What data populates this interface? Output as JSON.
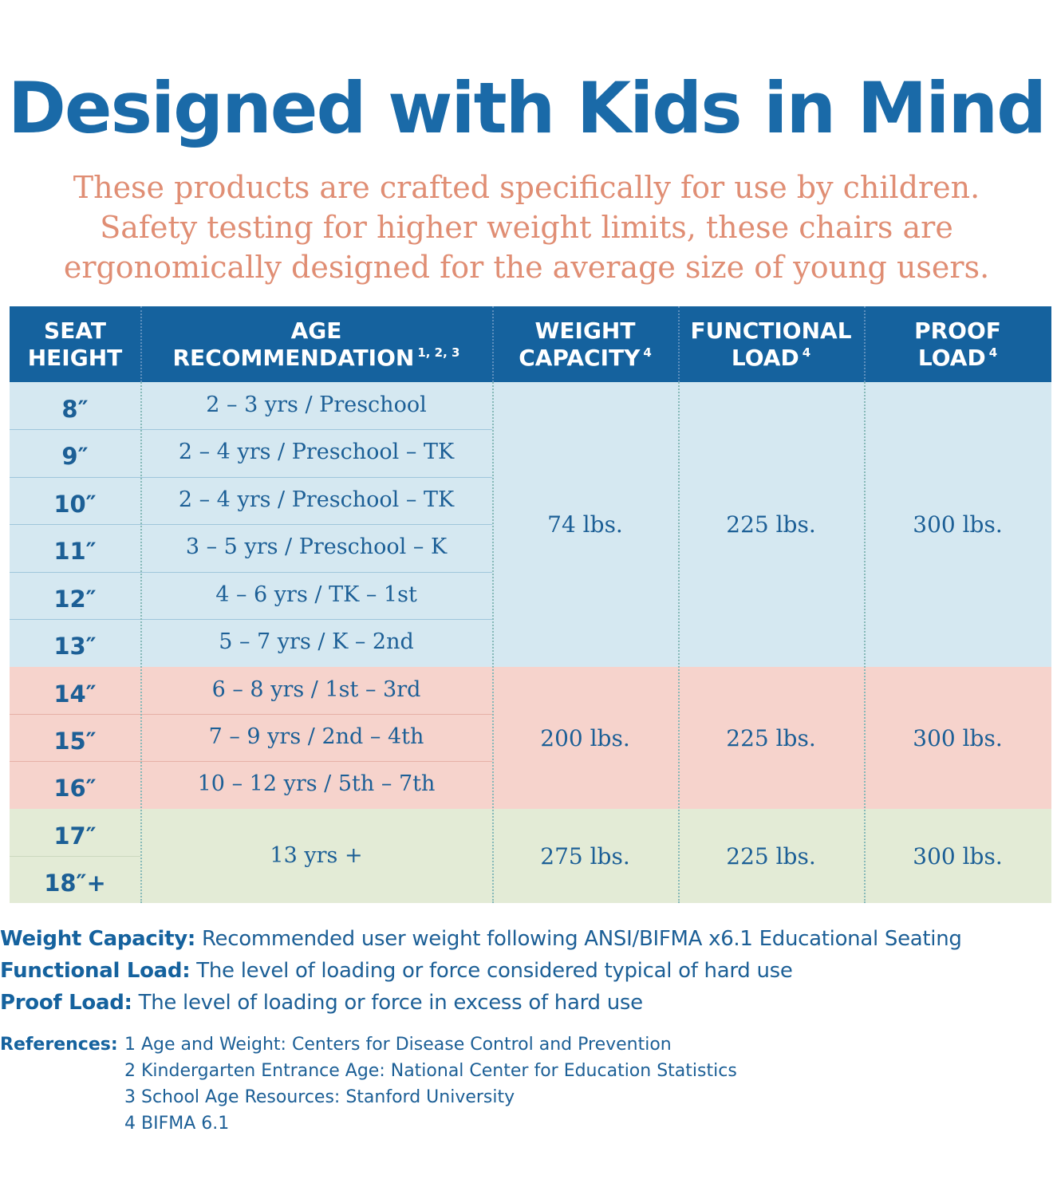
{
  "title": "Designed with Kids in Mind",
  "subtitle_lines": [
    "These products are crafted specifically for use by children.",
    "Safety testing for higher weight limits, these chairs are",
    "ergonomically designed for the average size of young users."
  ],
  "colors": {
    "title_blue": "#1a6aa8",
    "subtitle_salmon": "#e08e74",
    "header_blue": "#15629e",
    "band_blue": "#d5e8f1",
    "band_pink": "#f6d3cc",
    "band_green": "#e3ebd6"
  },
  "table": {
    "headers": {
      "seat": [
        "SEAT",
        "HEIGHT"
      ],
      "age": [
        "AGE",
        "RECOMMENDATION"
      ],
      "age_sup": "1, 2, 3",
      "weight": [
        "WEIGHT",
        "CAPACITY"
      ],
      "weight_sup": "4",
      "functional": [
        "FUNCTIONAL",
        "LOAD"
      ],
      "functional_sup": "4",
      "proof": [
        "PROOF",
        "LOAD"
      ],
      "proof_sup": "4"
    },
    "rows": [
      {
        "seat": "8″",
        "age": "2 – 3 yrs / Preschool"
      },
      {
        "seat": "9″",
        "age": "2 – 4 yrs / Preschool  –  TK"
      },
      {
        "seat": "10″",
        "age": "2 – 4 yrs / Preschool  –  TK"
      },
      {
        "seat": "11″",
        "age": "3 – 5 yrs / Preschool  –  K"
      },
      {
        "seat": "12″",
        "age": "4 – 6 yrs / TK  –  1st"
      },
      {
        "seat": "13″",
        "age": "5 – 7 yrs / K  –  2nd"
      },
      {
        "seat": "14″",
        "age": "6 – 8 yrs / 1st  –  3rd"
      },
      {
        "seat": "15″",
        "age": "7 – 9 yrs / 2nd  –  4th"
      },
      {
        "seat": "16″",
        "age": "10 – 12 yrs / 5th  –  7th"
      },
      {
        "seat": "17″"
      },
      {
        "seat": "18″+"
      }
    ],
    "groups": [
      {
        "weight": "74 lbs.",
        "functional": "225 lbs.",
        "proof": "300 lbs."
      },
      {
        "weight": "200 lbs.",
        "functional": "225 lbs.",
        "proof": "300 lbs."
      },
      {
        "age": "13 yrs +",
        "weight": "275 lbs.",
        "functional": "225 lbs.",
        "proof": "300 lbs."
      }
    ]
  },
  "definitions": [
    {
      "term": "Weight Capacity:",
      "text": "Recommended user weight following ANSI/BIFMA x6.1 Educational Seating"
    },
    {
      "term": "Functional Load:",
      "text": "The level of loading or force considered typical of hard use"
    },
    {
      "term": "Proof Load:",
      "text": "The level of loading or force in excess of hard use"
    }
  ],
  "references": {
    "label": "References",
    "items": [
      "1 Age and Weight: Centers for Disease Control and Prevention",
      "2 Kindergarten Entrance Age: National Center for Education Statistics",
      "3 School Age Resources: Stanford University",
      "4 BIFMA 6.1"
    ]
  }
}
